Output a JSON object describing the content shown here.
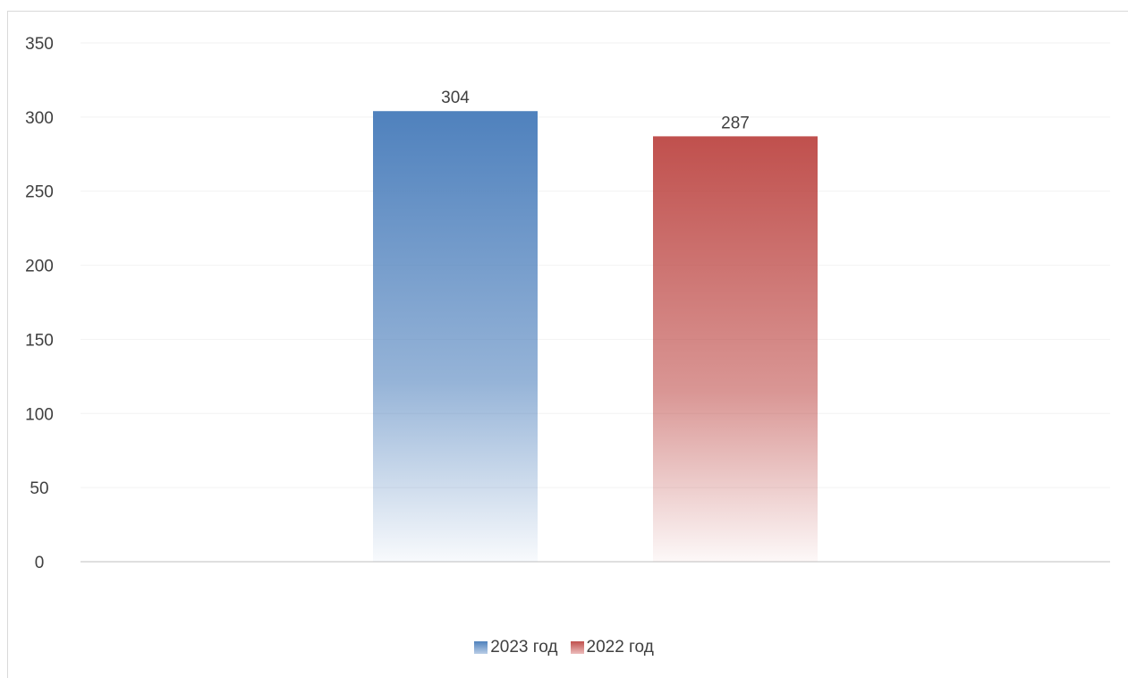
{
  "chart_data": {
    "type": "bar",
    "categories": [
      ""
    ],
    "series": [
      {
        "name": "2023 год",
        "values": [
          304
        ],
        "color": "#4F81BD"
      },
      {
        "name": "2022 год",
        "values": [
          287
        ],
        "color": "#C0504D"
      }
    ],
    "ylim": [
      0,
      350
    ],
    "yticks": [
      "0",
      "50",
      "100",
      "150",
      "200",
      "250",
      "300",
      "350"
    ],
    "data_labels": [
      "304",
      "287"
    ],
    "legend_position": "bottom",
    "grid": true
  }
}
